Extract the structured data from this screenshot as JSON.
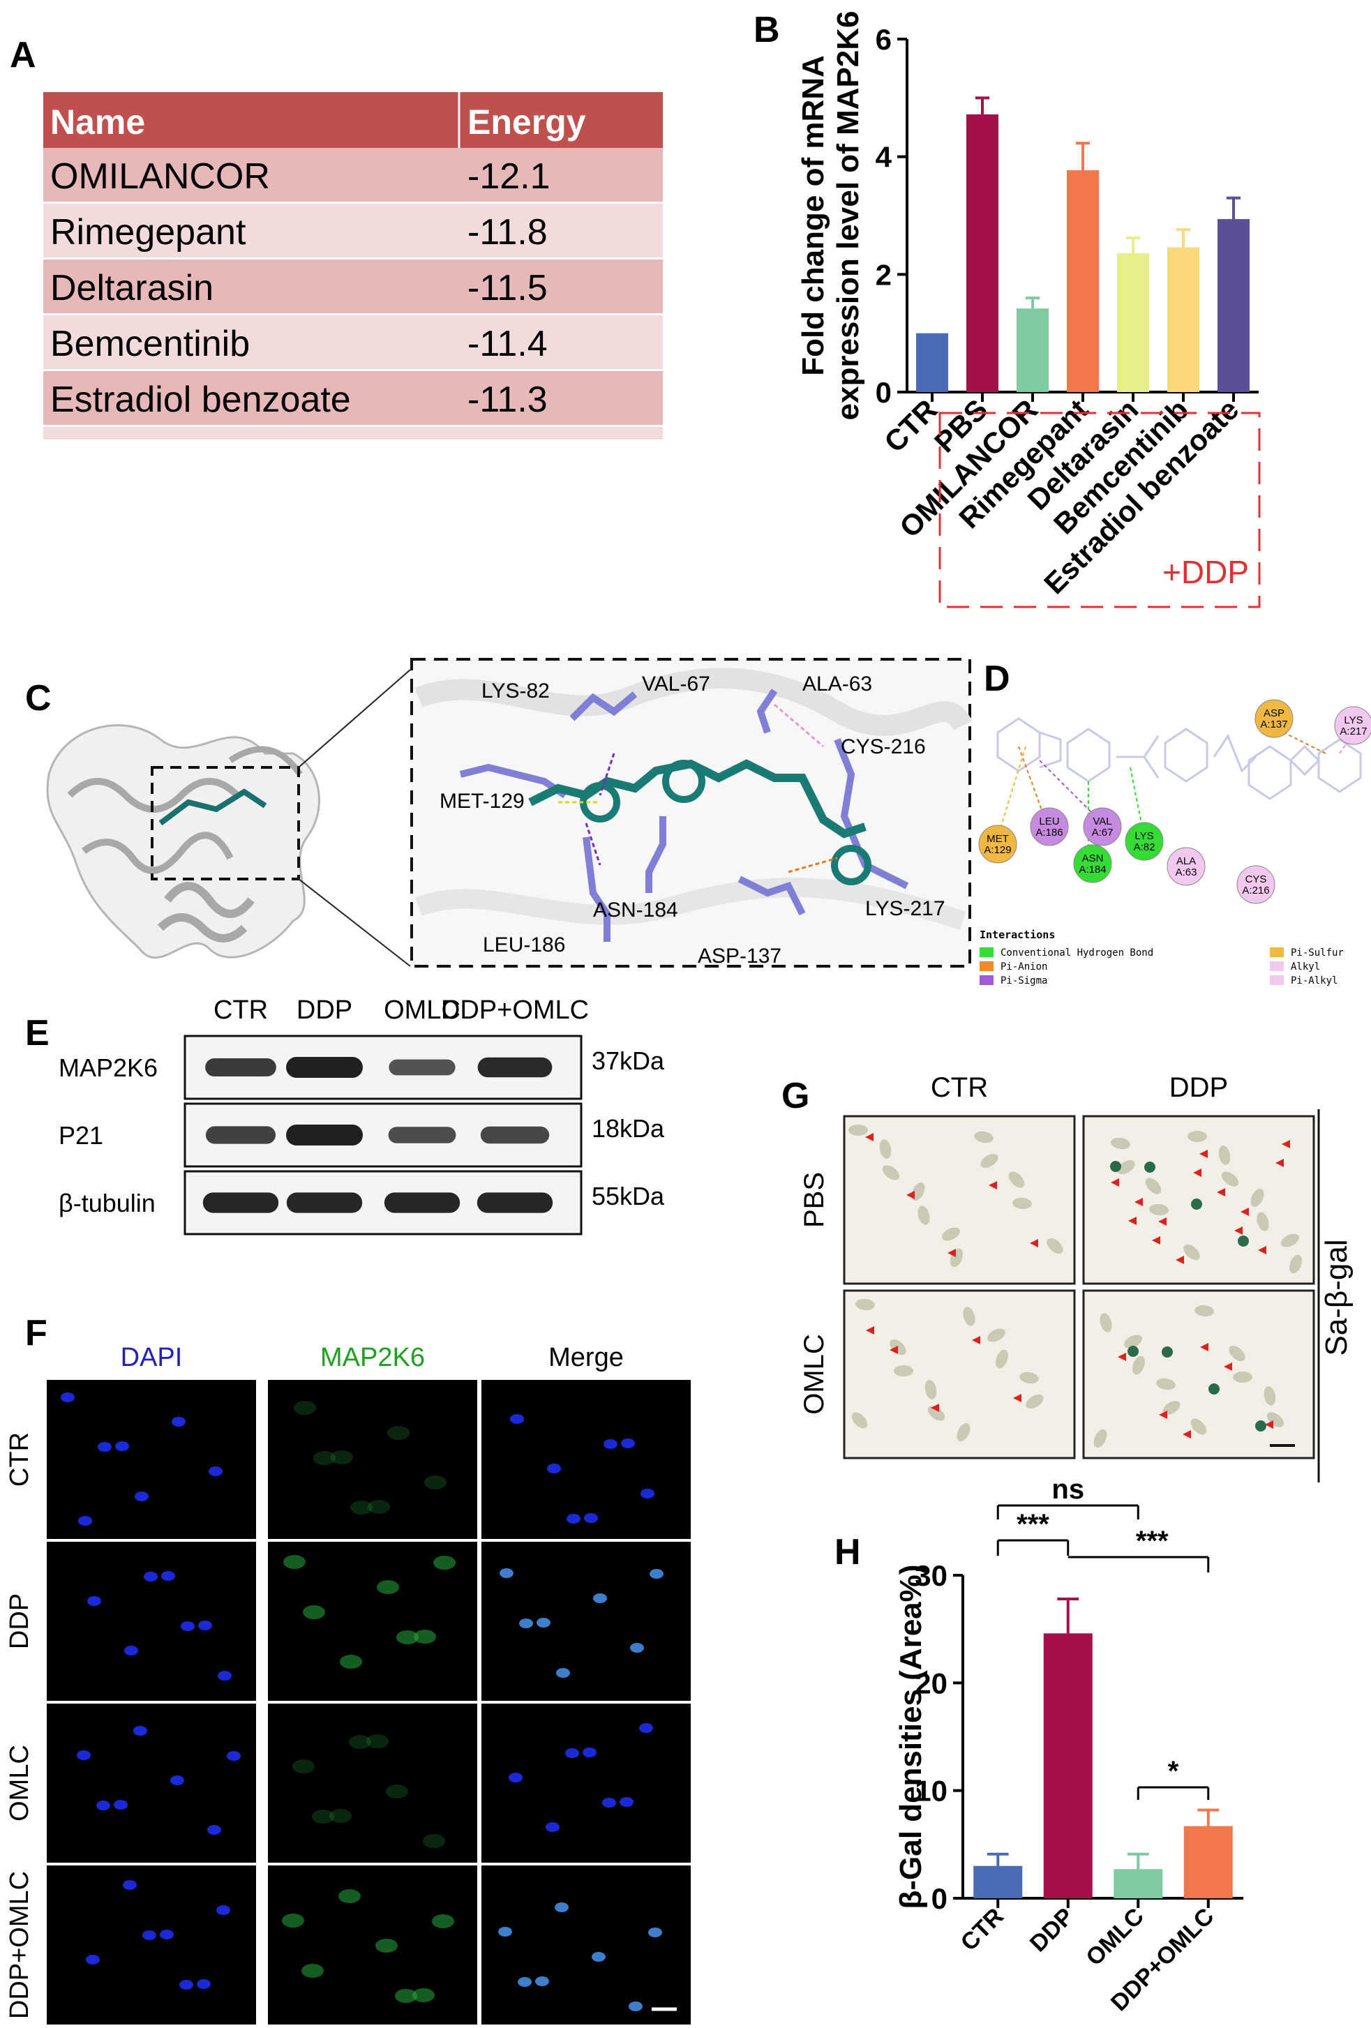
{
  "panels": {
    "A": {
      "letter": "A",
      "header": [
        "Name",
        "Energy"
      ],
      "rows": [
        {
          "name": "OMILANCOR",
          "energy": "-12.1"
        },
        {
          "name": "Rimegepant",
          "energy": "-11.8"
        },
        {
          "name": "Deltarasin",
          "energy": "-11.5"
        },
        {
          "name": "Bemcentinib",
          "energy": "-11.4"
        },
        {
          "name": "Estradiol benzoate",
          "energy": "-11.3"
        }
      ],
      "colors": {
        "header": "#c0504d",
        "row_dark": "#e6b8b7",
        "row_light": "#f2dcdb"
      }
    },
    "B": {
      "letter": "B",
      "bracket_label": "+DDP",
      "bracket_color": "#e03030"
    },
    "C": {
      "letter": "C",
      "residues": [
        "LYS-82",
        "VAL-67",
        "ALA-63",
        "CYS-216",
        "MET-129",
        "LEU-186",
        "ASN-184",
        "ASP-137",
        "LYS-217"
      ]
    },
    "D": {
      "letter": "D",
      "residue_nodes": [
        {
          "label": "ASP\nA:137",
          "color": "#f0b840"
        },
        {
          "label": "LYS\nA:217",
          "color": "#f3c8ef"
        },
        {
          "label": "LEU\nA:186",
          "color": "#c68be0"
        },
        {
          "label": "VAL\nA:67",
          "color": "#c68be0"
        },
        {
          "label": "MET\nA:129",
          "color": "#f0b840"
        },
        {
          "label": "LYS\nA:82",
          "color": "#33dd33"
        },
        {
          "label": "ASN\nA:184",
          "color": "#33dd33"
        },
        {
          "label": "ALA\nA:63",
          "color": "#f3c8ef"
        },
        {
          "label": "CYS\nA:216",
          "color": "#f3c8ef"
        }
      ],
      "legend_title": "Interactions",
      "legend": [
        {
          "label": "Conventional Hydrogen Bond",
          "color": "#33dd33"
        },
        {
          "label": "Pi-Anion",
          "color": "#f08a24"
        },
        {
          "label": "Pi-Sigma",
          "color": "#a15ad8"
        },
        {
          "label": "Pi-Sulfur",
          "color": "#f0b840"
        },
        {
          "label": "Alkyl",
          "color": "#f3c8ef"
        },
        {
          "label": "Pi-Alkyl",
          "color": "#f3c8ef"
        }
      ]
    },
    "E": {
      "letter": "E",
      "columns": [
        "CTR",
        "DDP",
        "OMLC",
        "DDP+OMLC"
      ],
      "blots": [
        {
          "protein": "MAP2K6",
          "size": "37kDa",
          "intensity": [
            0.75,
            1.0,
            0.55,
            0.9
          ]
        },
        {
          "protein": "P21",
          "size": "18kDa",
          "intensity": [
            0.7,
            1.0,
            0.6,
            0.65
          ]
        },
        {
          "protein": "β-tubulin",
          "size": "55kDa",
          "intensity": [
            0.95,
            0.95,
            0.95,
            0.95
          ]
        }
      ]
    },
    "F": {
      "letter": "F",
      "columns": [
        {
          "label": "DAPI",
          "color": "#2020c0"
        },
        {
          "label": "MAP2K6",
          "color": "#20a020"
        },
        {
          "label": "Merge",
          "color": "#000000"
        }
      ],
      "rows": [
        "CTR",
        "DDP",
        "OMLC",
        "DDP+OMLC"
      ]
    },
    "G": {
      "letter": "G",
      "columns": [
        "CTR",
        "DDP"
      ],
      "rows": [
        "PBS",
        "OMLC"
      ],
      "side_label": "Sa-β-gal"
    },
    "H": {
      "letter": "H",
      "significance": [
        {
          "text": "ns"
        },
        {
          "text": "***"
        },
        {
          "text": "***"
        },
        {
          "text": "*"
        }
      ]
    }
  },
  "chart_data": [
    {
      "panel": "B",
      "type": "bar",
      "categories": [
        "CTR",
        "PBS",
        "OMILANCOR",
        "Rimegepant",
        "Deltarasin",
        "Bemcentinib",
        "Estradiol benzoate"
      ],
      "values": [
        1.0,
        4.72,
        1.42,
        3.77,
        2.36,
        2.46,
        2.94
      ],
      "errors": [
        0,
        0.28,
        0.18,
        0.46,
        0.26,
        0.3,
        0.36
      ],
      "colors": [
        "#4a6bb5",
        "#a50f4a",
        "#7ecb9f",
        "#f2784b",
        "#e6ef8a",
        "#fbd97a",
        "#5b4f96"
      ],
      "title": "",
      "xlabel": "",
      "ylabel_lines": [
        "Fold change of mRNA",
        "expression level of  MAP2K6"
      ],
      "ylim": [
        0,
        6
      ],
      "yticks": [
        0,
        2,
        4,
        6
      ]
    },
    {
      "panel": "H",
      "type": "bar",
      "categories": [
        "CTR",
        "DDP",
        "OMLC",
        "DDP+OMLC"
      ],
      "values": [
        3.0,
        24.6,
        2.7,
        6.7
      ],
      "errors": [
        1.1,
        3.2,
        1.4,
        1.5
      ],
      "colors": [
        "#4a6bb5",
        "#a50f4a",
        "#7ecb9f",
        "#f2784b"
      ],
      "title": "",
      "xlabel": "",
      "ylabel": "β-Gal densities (Area%)",
      "ylim": [
        0,
        30
      ],
      "yticks": [
        0,
        10,
        20,
        30
      ]
    }
  ]
}
